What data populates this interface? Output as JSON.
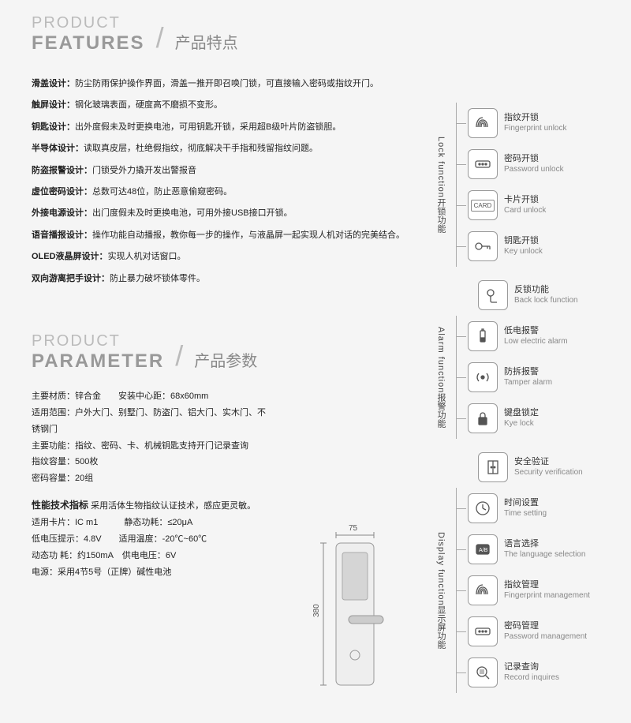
{
  "sections": {
    "features": {
      "eng1": "PRODUCT",
      "eng2": "FEATURES",
      "cn": "产品特点"
    },
    "parameter": {
      "eng1": "PRODUCT",
      "eng2": "PARAMETER",
      "cn": "产品参数"
    }
  },
  "feature_lines": [
    {
      "label": "滑盖设计：",
      "text": "防尘防雨保护操作界面，滑盖一推开即召唤门锁，可直接输入密码或指纹开门。"
    },
    {
      "label": "触屏设计：",
      "text": "钢化玻璃表面，硬度高不磨损不变形。"
    },
    {
      "label": "钥匙设计：",
      "text": "出外度假未及时更换电池，可用钥匙开锁，采用超B级叶片防盗锁胆。"
    },
    {
      "label": "半导体设计：",
      "text": "读取真皮层，杜绝假指纹，彻底解决干手指和残留指纹问题。"
    },
    {
      "label": "防盗报警设计：",
      "text": "门锁受外力撬开发出警报音"
    },
    {
      "label": "虚位密码设计：",
      "text": "总数可达48位，防止恶意偷窥密码。"
    },
    {
      "label": "外接电源设计：",
      "text": "出门度假未及时更换电池，可用外接USB接口开锁。"
    },
    {
      "label": "语音播报设计：",
      "text": "操作功能自动播报，教你每一步的操作，与液晶屏一起实现人机对话的完美结合。"
    },
    {
      "label": "OLED液晶屏设计：",
      "text": "实现人机对话窗口。"
    },
    {
      "label": "双向游离把手设计：",
      "text": "防止暴力破坏锁体零件。"
    }
  ],
  "params": {
    "l1": "主要材质：锌合金  安装中心距：68x60mm",
    "l2": "适用范围：户外大门、别墅门、防盗门、铝大门、实木门、不锈钢门",
    "l3": "主要功能：指纹、密码、卡、机械钥匙支持开门记录查询",
    "l4": "指纹容量：500枚",
    "l5": "密码容量：20组",
    "perf_title": "性能技术指标",
    "perf_sub": "采用活体生物指纹认证技术，感应更灵敏。",
    "p1": "适用卡片：IC m1   静态功耗：≤20μA",
    "p2": "低电压提示：4.8V  适用温度：-20℃~60℃",
    "p3": "动态功 耗：约150mA 供电电压：6V",
    "p4": "电源：采用4节5号（正牌）碱性电池"
  },
  "diagram": {
    "width_label": "75",
    "height_label": "380"
  },
  "side": {
    "lock": {
      "label_en": "Lock function",
      "label_cn": "开锁功能",
      "items": [
        {
          "cn": "指纹开锁",
          "en": "Fingerprint unlock",
          "icon": "fingerprint"
        },
        {
          "cn": "密码开锁",
          "en": "Password unlock",
          "icon": "dots"
        },
        {
          "cn": "卡片开锁",
          "en": "Card unlock",
          "icon": "card"
        },
        {
          "cn": "钥匙开锁",
          "en": "Key unlock",
          "icon": "key"
        }
      ]
    },
    "backlock": {
      "cn": "反锁功能",
      "en": "Back lock function",
      "icon": "handle"
    },
    "alarm": {
      "label_en": "Alarm function",
      "label_cn": "报警功能",
      "items": [
        {
          "cn": "低电报警",
          "en": "Low electric alarm",
          "icon": "battery"
        },
        {
          "cn": "防拆报警",
          "en": "Tamper alarm",
          "icon": "tamper"
        },
        {
          "cn": "键盘锁定",
          "en": "Kye lock",
          "icon": "padlock"
        }
      ]
    },
    "security": {
      "cn": "安全验证",
      "en": "Security verification",
      "icon": "door"
    },
    "display": {
      "label_en": "Display function",
      "label_cn": "显示屏功能",
      "items": [
        {
          "cn": "时间设置",
          "en": "Time setting",
          "icon": "clock"
        },
        {
          "cn": "语言选择",
          "en": "The language selection",
          "icon": "lang"
        },
        {
          "cn": "指纹管理",
          "en": "Fingerprint management",
          "icon": "fingerprint"
        },
        {
          "cn": "密码管理",
          "en": "Password management",
          "icon": "dots"
        },
        {
          "cn": "记录查询",
          "en": "Record inquires",
          "icon": "search"
        }
      ]
    }
  },
  "colors": {
    "bg": "#f5f5f5",
    "title_light": "#bbbbbb",
    "title_dark": "#999999",
    "text": "#222222",
    "line": "#aaaaaa"
  }
}
